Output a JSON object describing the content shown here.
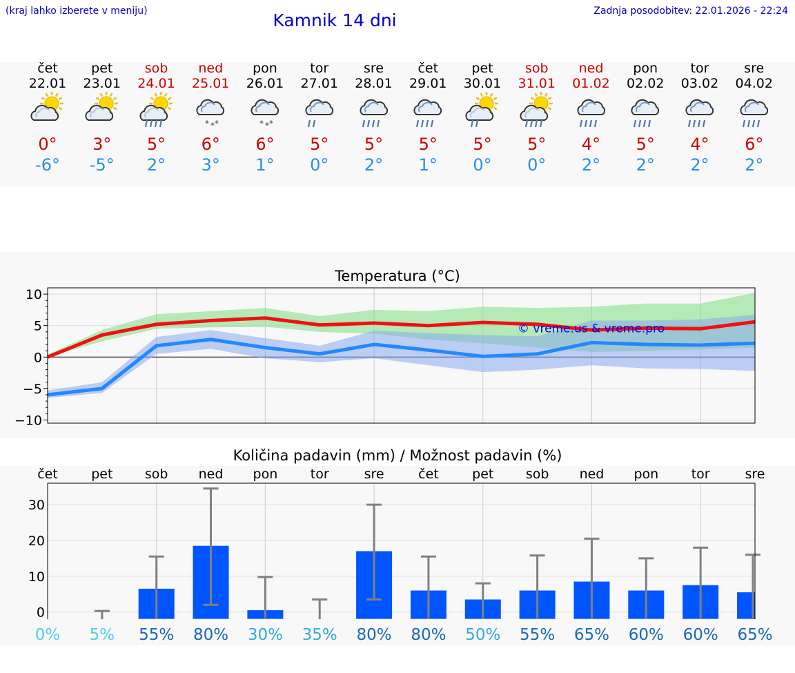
{
  "header": {
    "region_hint": "(kraj lahko izberete v meniju)",
    "title": "Kamnik 14 dni",
    "updated": "Zadnja posodobitev: 22.01.2026 - 22:24"
  },
  "days": [
    {
      "name": "čet",
      "date": "22.01",
      "weekend": false,
      "icon": "partly-cloudy-icon",
      "max": "0°",
      "min": "-6°"
    },
    {
      "name": "pet",
      "date": "23.01",
      "weekend": false,
      "icon": "partly-cloudy-icon",
      "max": "3°",
      "min": "-5°"
    },
    {
      "name": "sob",
      "date": "24.01",
      "weekend": true,
      "icon": "sun-cloud-rain-icon",
      "max": "5°",
      "min": "2°"
    },
    {
      "name": "ned",
      "date": "25.01",
      "weekend": true,
      "icon": "cloud-snow-icon",
      "max": "6°",
      "min": "3°"
    },
    {
      "name": "pon",
      "date": "26.01",
      "weekend": false,
      "icon": "cloud-snow-icon",
      "max": "6°",
      "min": "1°"
    },
    {
      "name": "tor",
      "date": "27.01",
      "weekend": false,
      "icon": "cloud-light-rain-icon",
      "max": "5°",
      "min": "0°"
    },
    {
      "name": "sre",
      "date": "28.01",
      "weekend": false,
      "icon": "cloud-rain-icon",
      "max": "5°",
      "min": "2°"
    },
    {
      "name": "čet",
      "date": "29.01",
      "weekend": false,
      "icon": "cloud-rain-icon",
      "max": "5°",
      "min": "1°"
    },
    {
      "name": "pet",
      "date": "30.01",
      "weekend": false,
      "icon": "sun-cloud-light-rain-icon",
      "max": "5°",
      "min": "0°"
    },
    {
      "name": "sob",
      "date": "31.01",
      "weekend": true,
      "icon": "sun-cloud-rain-icon",
      "max": "5°",
      "min": "0°"
    },
    {
      "name": "ned",
      "date": "01.02",
      "weekend": true,
      "icon": "cloud-rain-icon",
      "max": "4°",
      "min": "2°"
    },
    {
      "name": "pon",
      "date": "02.02",
      "weekend": false,
      "icon": "cloud-rain-icon",
      "max": "5°",
      "min": "2°"
    },
    {
      "name": "tor",
      "date": "03.02",
      "weekend": false,
      "icon": "cloud-rain-icon",
      "max": "4°",
      "min": "2°"
    },
    {
      "name": "sre",
      "date": "04.02",
      "weekend": false,
      "icon": "cloud-rain-icon",
      "max": "6°",
      "min": "2°"
    }
  ],
  "colors": {
    "max": "#cc0000",
    "min": "#2b8ce6",
    "bar": "#0055ff",
    "green": "#7ddc7d",
    "blue": "#88aaee"
  },
  "chart_data": [
    {
      "type": "line",
      "title": "Temperatura (°C)",
      "watermark": "© vreme.us & vreme.pro",
      "ylim": [
        -10.5,
        11
      ],
      "yticks": [
        10,
        5,
        0,
        -5,
        -10
      ],
      "ytick_labels": [
        "10",
        "5",
        "0",
        "−5",
        "−10"
      ],
      "series": [
        {
          "name": "max",
          "values": [
            0,
            3.5,
            5.2,
            5.8,
            6.2,
            5.1,
            5.4,
            5.0,
            5.5,
            5.2,
            4.3,
            4.6,
            4.5,
            5.6
          ],
          "band_low": [
            0,
            2.5,
            4.5,
            4.7,
            4.8,
            4.0,
            3.7,
            2.8,
            2.2,
            1.5,
            0.8,
            1.0,
            1.2,
            1.5
          ],
          "band_high": [
            0.4,
            4.3,
            6.8,
            7.3,
            7.8,
            6.5,
            7.5,
            7.3,
            8.0,
            7.8,
            8.0,
            8.5,
            8.5,
            10.2
          ]
        },
        {
          "name": "min",
          "values": [
            -6.0,
            -5.0,
            1.8,
            2.8,
            1.5,
            0.5,
            2.0,
            1.1,
            0.1,
            0.5,
            2.3,
            2.0,
            1.9,
            2.2
          ],
          "band_low": [
            -6.5,
            -5.7,
            0.5,
            1.3,
            -0.2,
            -0.8,
            -0.2,
            -1.3,
            -2.4,
            -2.0,
            -1.3,
            -1.8,
            -1.9,
            -2.2
          ],
          "band_high": [
            -5.3,
            -4.0,
            3.2,
            4.3,
            3.0,
            1.8,
            4.2,
            3.8,
            3.5,
            3.3,
            5.8,
            5.8,
            6.0,
            6.7
          ]
        }
      ]
    },
    {
      "type": "bar",
      "title": "Količina padavin (mm) / Možnost padavin (%)",
      "categories": [
        "čet",
        "pet",
        "sob",
        "ned",
        "pon",
        "tor",
        "sre",
        "čet",
        "pet",
        "sob",
        "ned",
        "pon",
        "tor",
        "sre"
      ],
      "values": [
        0,
        0,
        6.5,
        18.5,
        0.5,
        0,
        17,
        6,
        3.5,
        6,
        8.5,
        6,
        7.5,
        5.5
      ],
      "err_low": [
        0,
        0,
        0,
        2,
        0,
        0,
        3.5,
        0,
        0,
        0,
        0,
        0,
        0,
        0
      ],
      "err_high": [
        0,
        0.3,
        15.5,
        34.5,
        9.8,
        3.5,
        30,
        15.5,
        8,
        15.8,
        20.5,
        15,
        18,
        16
      ],
      "probability": [
        "0%",
        "5%",
        "55%",
        "80%",
        "30%",
        "35%",
        "80%",
        "80%",
        "50%",
        "55%",
        "65%",
        "60%",
        "60%",
        "65%"
      ],
      "prob_colors": [
        "#55ccee",
        "#55ccee",
        "#1a66bb",
        "#1a66bb",
        "#33aadd",
        "#33aadd",
        "#1a66bb",
        "#1a66bb",
        "#33aadd",
        "#1a66bb",
        "#1a66bb",
        "#1a66bb",
        "#1a66bb",
        "#1a66bb"
      ],
      "ylim": [
        -2,
        36
      ],
      "yticks": [
        30,
        20,
        10,
        0
      ],
      "ytick_labels": [
        "30",
        "20",
        "10",
        "0"
      ]
    }
  ]
}
